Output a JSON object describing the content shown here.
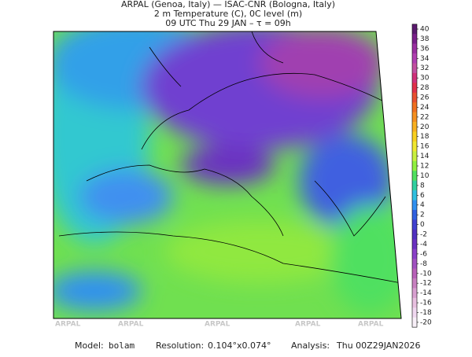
{
  "header": {
    "line1": "ARPAL (Genoa, Italy)  —  ISAC-CNR (Bologna, Italy)",
    "line2": "2 m Temperature (C), 0C level (m)",
    "line3": "09 UTC Thu 29 JAN  –  τ = 09h"
  },
  "colorbar": {
    "ticks": [
      40,
      38,
      36,
      34,
      32,
      30,
      28,
      26,
      24,
      22,
      20,
      18,
      16,
      14,
      12,
      10,
      8,
      6,
      4,
      2,
      0,
      -2,
      -4,
      -6,
      -8,
      -10,
      -12,
      -14,
      -16,
      -18,
      -20
    ],
    "colors": [
      "#5a1a6e",
      "#7a1f8a",
      "#9a2fa0",
      "#b03fb0",
      "#c24fa0",
      "#d0307a",
      "#e0304a",
      "#e85030",
      "#f07020",
      "#f59020",
      "#f8b020",
      "#f8d020",
      "#f0e830",
      "#c8f040",
      "#90f040",
      "#50e060",
      "#30d0a0",
      "#30c0e0",
      "#3090f0",
      "#3060e0",
      "#4040d0",
      "#5030c0",
      "#6a30c0",
      "#8a40c8",
      "#a050c0",
      "#b860b8",
      "#c880c0",
      "#d8a0d0",
      "#e8c0e0",
      "#f0d8f0",
      "#f8f0f8"
    ]
  },
  "watermarks": [
    "ARPAL",
    "ARPAL",
    "ARPAL",
    "ARPAL",
    "ARPAL"
  ],
  "footer": {
    "model_label": "Model:",
    "model": "bolam",
    "resolution_label": "Resolution:",
    "resolution": "0.104°x0.074°",
    "analysis_label": "Analysis:",
    "analysis": "Thu 00Z29JAN2026"
  }
}
